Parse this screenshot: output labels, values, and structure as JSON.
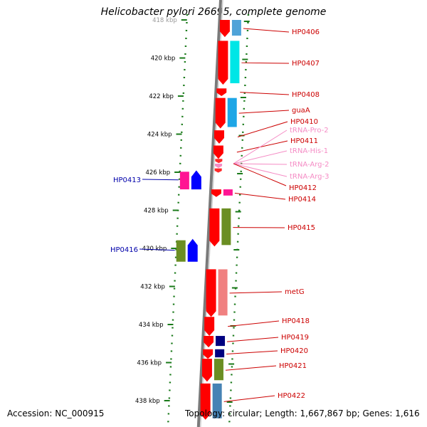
{
  "title": "Helicobacter pylori 26695, complete genome",
  "footer": {
    "accession": "Accession: NC_000915",
    "meta": "Topology: circular; Length: 1,667,867 bp; Genes: 1,616"
  },
  "axis": {
    "unit": "kbp",
    "ticks": [
      {
        "label": "418 kbp",
        "kbp": 418
      },
      {
        "label": "420 kbp",
        "kbp": 420
      },
      {
        "label": "422 kbp",
        "kbp": 422
      },
      {
        "label": "424 kbp",
        "kbp": 424
      },
      {
        "label": "426 kbp",
        "kbp": 426
      },
      {
        "label": "428 kbp",
        "kbp": 428
      },
      {
        "label": "430 kbp",
        "kbp": 430
      },
      {
        "label": "432 kbp",
        "kbp": 432
      },
      {
        "label": "434 kbp",
        "kbp": 434
      },
      {
        "label": "436 kbp",
        "kbp": 436
      },
      {
        "label": "438 kbp",
        "kbp": 438
      }
    ]
  },
  "genes_forward": [
    {
      "name": "HP0406",
      "start": 418.0,
      "end": 418.9,
      "color": "#ff0000",
      "bar_color": "#4fa3d8"
    },
    {
      "name": "HP0407",
      "start": 419.1,
      "end": 421.4,
      "color": "#ff0000",
      "bar_color": "#00e6e6"
    },
    {
      "name": "HP0408",
      "start": 421.6,
      "end": 422.0,
      "color": "#ff0000",
      "bar_color": ""
    },
    {
      "name": "guaA",
      "start": 422.1,
      "end": 423.7,
      "color": "#ff0000",
      "bar_color": "#1ea6e6"
    },
    {
      "name": "HP0410",
      "start": 423.8,
      "end": 424.5,
      "color": "#ff0000",
      "bar_color": ""
    },
    {
      "name": "HP0411",
      "start": 424.6,
      "end": 425.3,
      "color": "#ff0000",
      "bar_color": ""
    },
    {
      "name": "HP0414",
      "start": 426.9,
      "end": 427.3,
      "color": "#ff0000",
      "bar_color": "#ff1493"
    },
    {
      "name": "HP0415",
      "start": 427.9,
      "end": 429.9,
      "color": "#ff0000",
      "bar_color": "#6b8e23"
    },
    {
      "name": "metG",
      "start": 431.1,
      "end": 433.6,
      "color": "#ff0000",
      "bar_color": "#f08080"
    },
    {
      "name": "HP0418",
      "start": 433.6,
      "end": 434.6,
      "color": "#ff0000",
      "bar_color": ""
    },
    {
      "name": "HP0419",
      "start": 434.6,
      "end": 435.2,
      "color": "#ff0000",
      "bar_color": "#000080"
    },
    {
      "name": "HP0420",
      "start": 435.3,
      "end": 435.8,
      "color": "#ff0000",
      "bar_color": "#000080"
    },
    {
      "name": "HP0421",
      "start": 435.8,
      "end": 437.0,
      "color": "#ff0000",
      "bar_color": "#6b8e23"
    },
    {
      "name": "HP0422",
      "start": 437.1,
      "end": 439.0,
      "color": "#ff0000",
      "bar_color": "#4682b4"
    }
  ],
  "trna": [
    {
      "name": "tRNA-Pro-2",
      "color": "#f58cc5"
    },
    {
      "name": "tRNA-His-1",
      "color": "#f58cc5"
    },
    {
      "name": "tRNA-Arg-2",
      "color": "#f58cc5"
    },
    {
      "name": "tRNA-Arg-3",
      "color": "#f58cc5"
    }
  ],
  "extra_label": {
    "name": "HP0412",
    "color": "#cc0000"
  },
  "genes_reverse": [
    {
      "name": "HP0413",
      "start": 425.9,
      "end": 426.9,
      "color": "#0000ff",
      "bar_color": "#ff1493"
    },
    {
      "name": "HP0416",
      "start": 429.5,
      "end": 430.7,
      "color": "#0000ff",
      "bar_color": "#6b8e23"
    }
  ],
  "colors": {
    "forward_label": "#cc0000",
    "reverse_label": "#0000aa",
    "trna_label": "#f58cc5",
    "track": "#7a7a7a",
    "dots": "#1a7a1a"
  }
}
